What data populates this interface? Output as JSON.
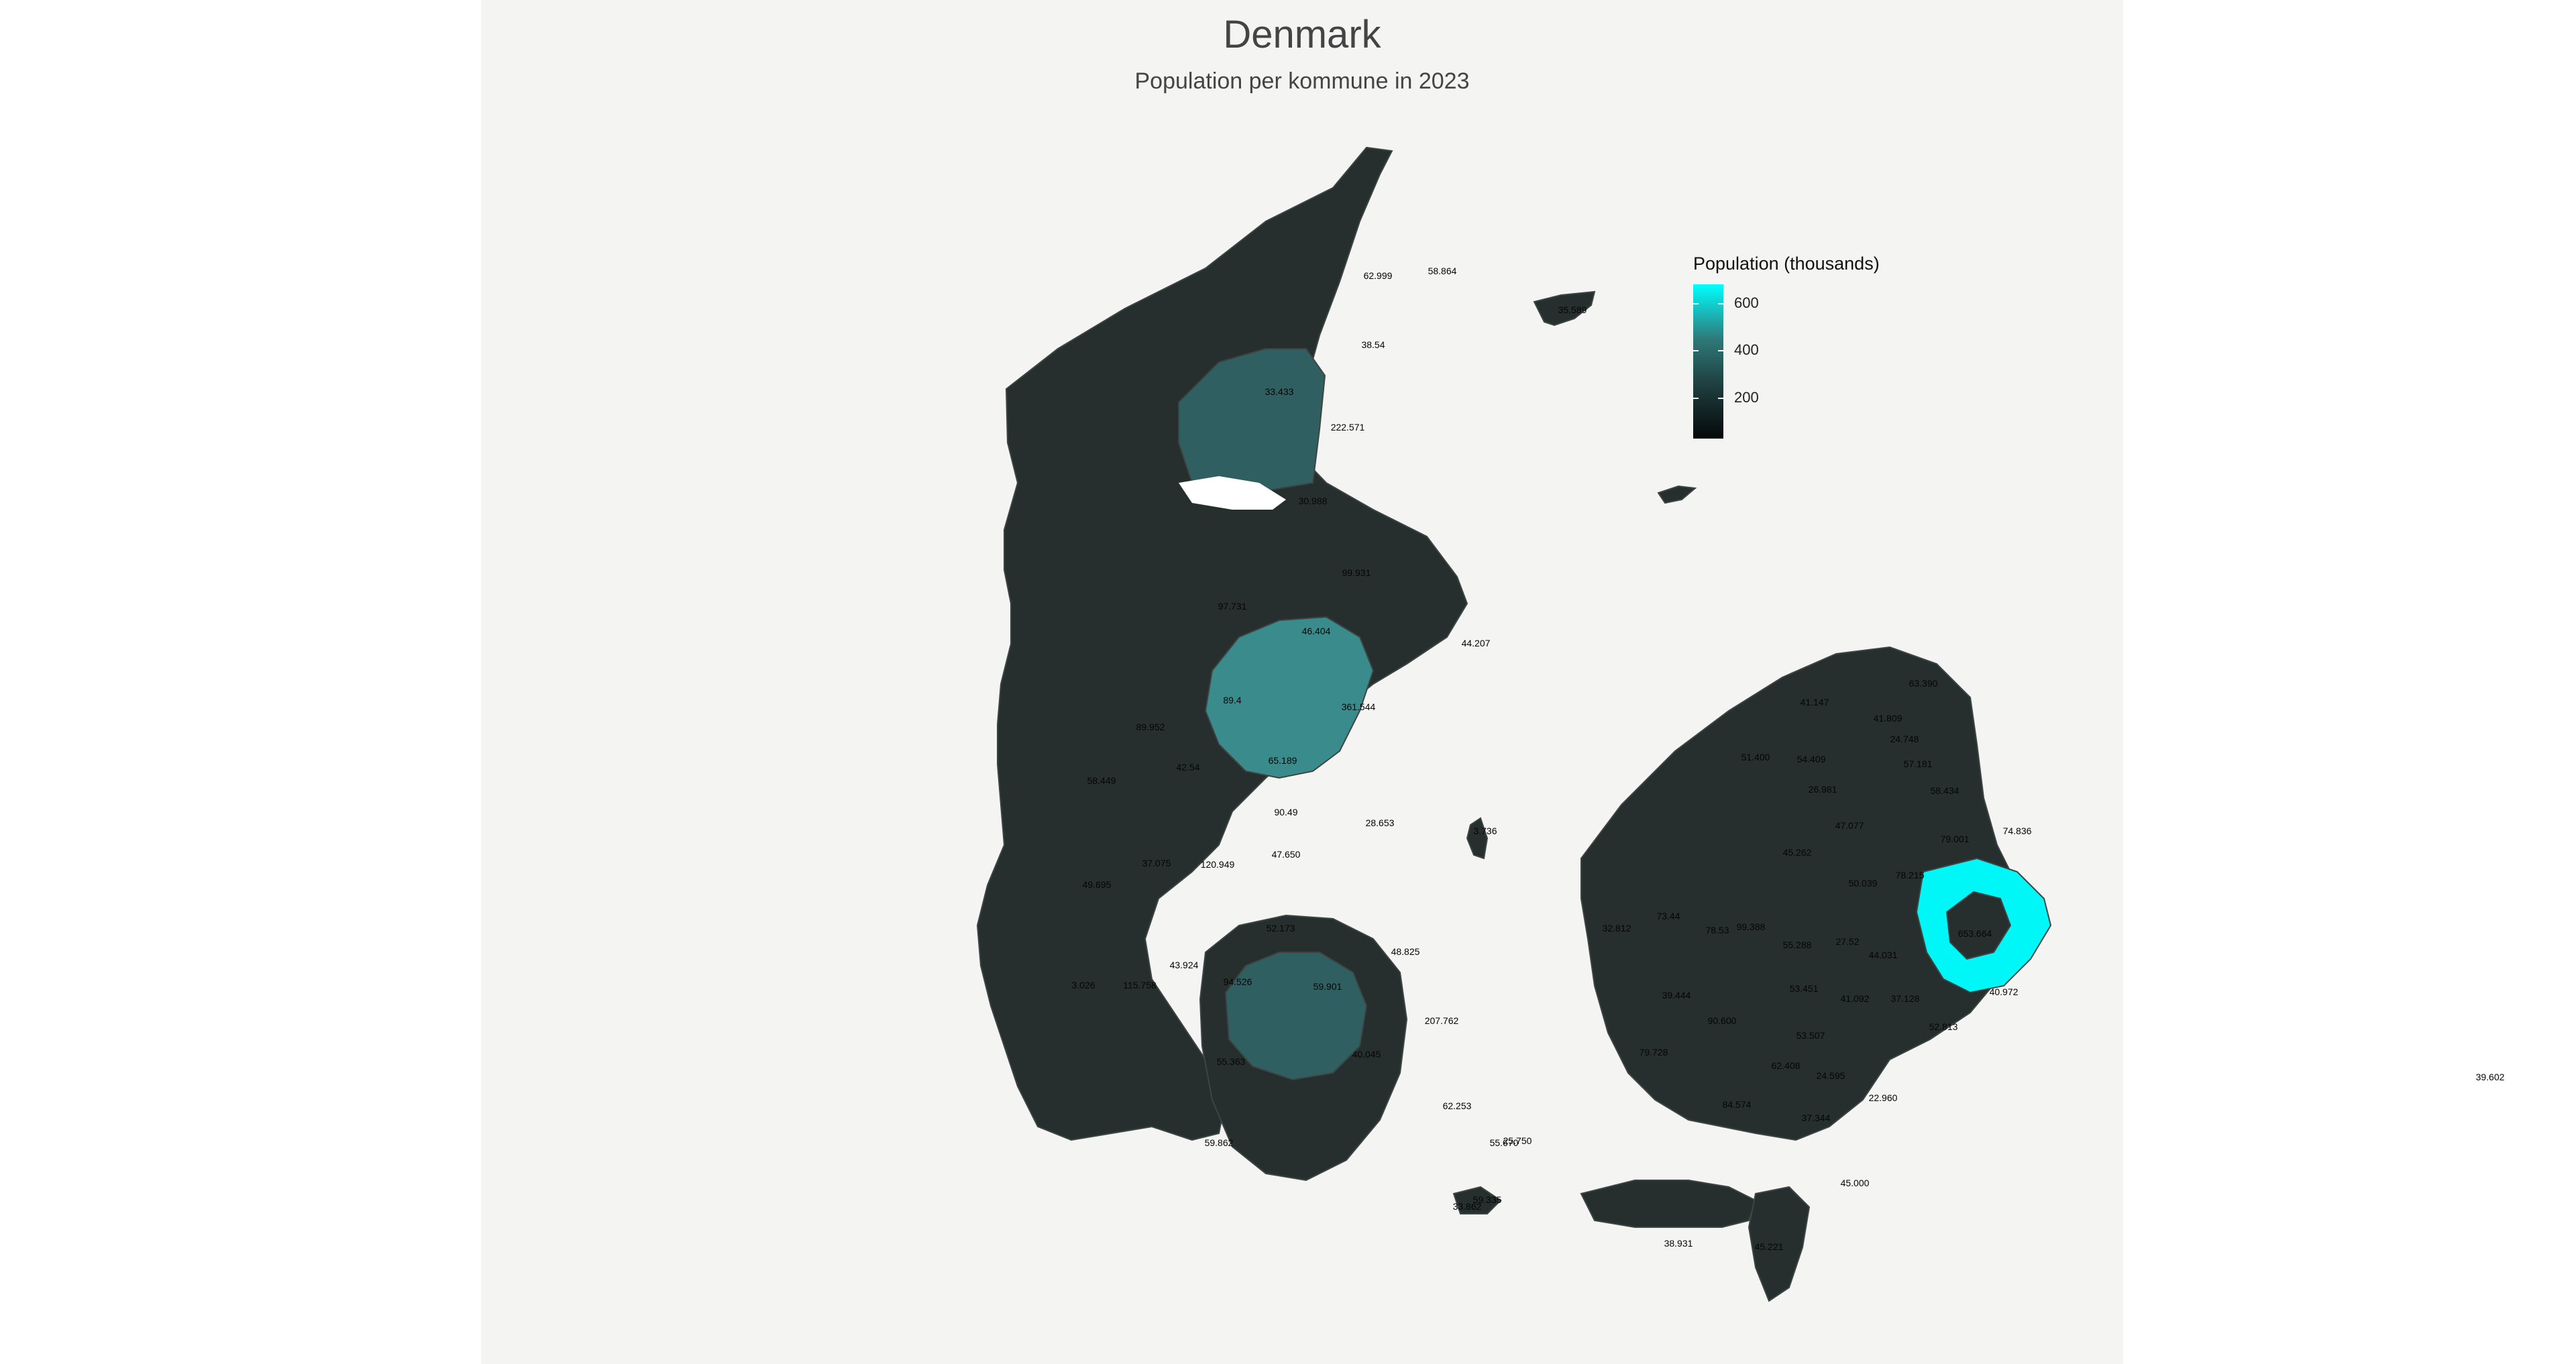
{
  "title": "Denmark",
  "subtitle": "Population per kommune in 2023",
  "legend": {
    "title": "Population (thousands)",
    "ticks": [
      {
        "label": "600",
        "value": 600
      },
      {
        "label": "400",
        "value": 400
      },
      {
        "label": "200",
        "value": 200
      }
    ],
    "min": 25,
    "max": 680,
    "colors": {
      "low": "#000000",
      "mid": "#2f7a7a",
      "high": "#00ffff"
    }
  },
  "colors": {
    "panel_background": "#f4f4f2",
    "region_base": "#262e2e",
    "region_mid": "#2f5f60",
    "region_high": "#3a8c8c",
    "region_max": "#00f7f7",
    "borders": "#3d4444",
    "water": "#ffffff"
  },
  "chart_data": {
    "type": "map",
    "title": "Denmark",
    "subtitle": "Population per kommune in 2023",
    "color_scale": {
      "title": "Population (thousands)",
      "ticks": [
        200,
        400,
        600
      ]
    },
    "value_labels": [
      "62.999",
      "58.864",
      "35.589",
      "38.54",
      "222.571",
      "33.433",
      "30.988",
      "99.931",
      "97.731",
      "46.404",
      "44.207",
      "361.544",
      "89.4",
      "89.952",
      "65.189",
      "42.54",
      "58.449",
      "90.49",
      "28.653",
      "3.736",
      "47.650",
      "37.075",
      "120.949",
      "49.695",
      "52.173",
      "43.924",
      "94.526",
      "3.026",
      "115.758",
      "59.901",
      "55.363",
      "40.045",
      "207.762",
      "48.825",
      "62.253",
      "55.670",
      "59.862",
      "59.335",
      "38.931",
      "45.221",
      "63.390",
      "41.147",
      "41.809",
      "24.748",
      "51.400",
      "54.409",
      "57.181",
      "26.981",
      "58.434",
      "74.836",
      "47.077",
      "79.001",
      "45.262",
      "50.039",
      "78.215",
      "32.812",
      "73.44",
      "78.53",
      "99.388",
      "55.288",
      "27.52",
      "44.031",
      "653.664",
      "39.444",
      "90.600",
      "53.451",
      "41.092",
      "37.128",
      "79.728",
      "53.507",
      "52.813",
      "62.408",
      "24.595",
      "84.574",
      "22.960",
      "37.344",
      "45.000",
      "40.972",
      "39.602",
      "25.750",
      "33.862"
    ]
  }
}
